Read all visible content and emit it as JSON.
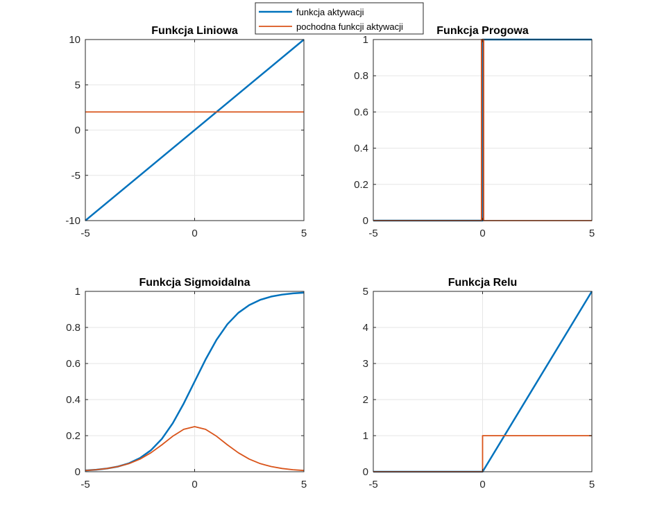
{
  "legend": {
    "entries": [
      {
        "label": "funkcja aktywacji",
        "color": "#0072BD"
      },
      {
        "label": "pochodna funkcji aktywacji",
        "color": "#D95319"
      }
    ]
  },
  "colors": {
    "function": "#0072BD",
    "derivative": "#D95319",
    "grid": "#e6e6e6",
    "axes": "#262626"
  },
  "chart_data": [
    {
      "type": "line",
      "title": "Funkcja Liniowa",
      "xlim": [
        -5,
        5
      ],
      "ylim": [
        -10,
        10
      ],
      "xticks": [
        -5,
        0,
        5
      ],
      "yticks": [
        -10,
        -5,
        0,
        5,
        10
      ],
      "grid": true,
      "series": [
        {
          "name": "funkcja aktywacji",
          "x": [
            -5,
            5
          ],
          "y": [
            -10,
            10
          ]
        },
        {
          "name": "pochodna funkcji aktywacji",
          "x": [
            -5,
            5
          ],
          "y": [
            2,
            2
          ]
        }
      ]
    },
    {
      "type": "line",
      "title": "Funkcja Progowa",
      "xlim": [
        -5,
        5
      ],
      "ylim": [
        0,
        1
      ],
      "xticks": [
        -5,
        0,
        5
      ],
      "yticks": [
        0,
        0.2,
        0.4,
        0.6,
        0.8,
        1
      ],
      "grid": true,
      "series": [
        {
          "name": "funkcja aktywacji",
          "x": [
            -5,
            0,
            0,
            5
          ],
          "y": [
            0,
            0,
            1,
            1
          ]
        },
        {
          "name": "pochodna funkcji aktywacji",
          "x": [
            -5,
            -0.05,
            -0.05,
            0.05,
            0.05,
            5
          ],
          "y": [
            0,
            0,
            1,
            1,
            0,
            0
          ]
        }
      ]
    },
    {
      "type": "line",
      "title": "Funkcja Sigmoidalna",
      "xlim": [
        -5,
        5
      ],
      "ylim": [
        0,
        1
      ],
      "xticks": [
        -5,
        0,
        5
      ],
      "yticks": [
        0,
        0.2,
        0.4,
        0.6,
        0.8,
        1
      ],
      "grid": true,
      "series": [
        {
          "name": "funkcja aktywacji",
          "x": [
            -5,
            -4.5,
            -4,
            -3.5,
            -3,
            -2.5,
            -2,
            -1.5,
            -1,
            -0.5,
            0,
            0.5,
            1,
            1.5,
            2,
            2.5,
            3,
            3.5,
            4,
            4.5,
            5
          ],
          "y": [
            0.007,
            0.011,
            0.018,
            0.029,
            0.047,
            0.076,
            0.119,
            0.182,
            0.269,
            0.378,
            0.5,
            0.622,
            0.731,
            0.818,
            0.881,
            0.924,
            0.953,
            0.971,
            0.982,
            0.989,
            0.993
          ]
        },
        {
          "name": "pochodna funkcji aktywacji",
          "x": [
            -5,
            -4.5,
            -4,
            -3.5,
            -3,
            -2.5,
            -2,
            -1.5,
            -1,
            -0.5,
            0,
            0.5,
            1,
            1.5,
            2,
            2.5,
            3,
            3.5,
            4,
            4.5,
            5
          ],
          "y": [
            0.007,
            0.011,
            0.018,
            0.029,
            0.045,
            0.07,
            0.105,
            0.149,
            0.197,
            0.235,
            0.25,
            0.235,
            0.197,
            0.149,
            0.105,
            0.07,
            0.045,
            0.029,
            0.018,
            0.011,
            0.007
          ]
        }
      ]
    },
    {
      "type": "line",
      "title": "Funkcja Relu",
      "xlim": [
        -5,
        5
      ],
      "ylim": [
        0,
        5
      ],
      "xticks": [
        -5,
        0,
        5
      ],
      "yticks": [
        0,
        1,
        2,
        3,
        4,
        5
      ],
      "grid": true,
      "series": [
        {
          "name": "funkcja aktywacji",
          "x": [
            -5,
            0,
            5
          ],
          "y": [
            0,
            0,
            5
          ]
        },
        {
          "name": "pochodna funkcji aktywacji",
          "x": [
            -5,
            0,
            0,
            5
          ],
          "y": [
            0,
            0,
            1,
            1
          ]
        }
      ]
    }
  ]
}
